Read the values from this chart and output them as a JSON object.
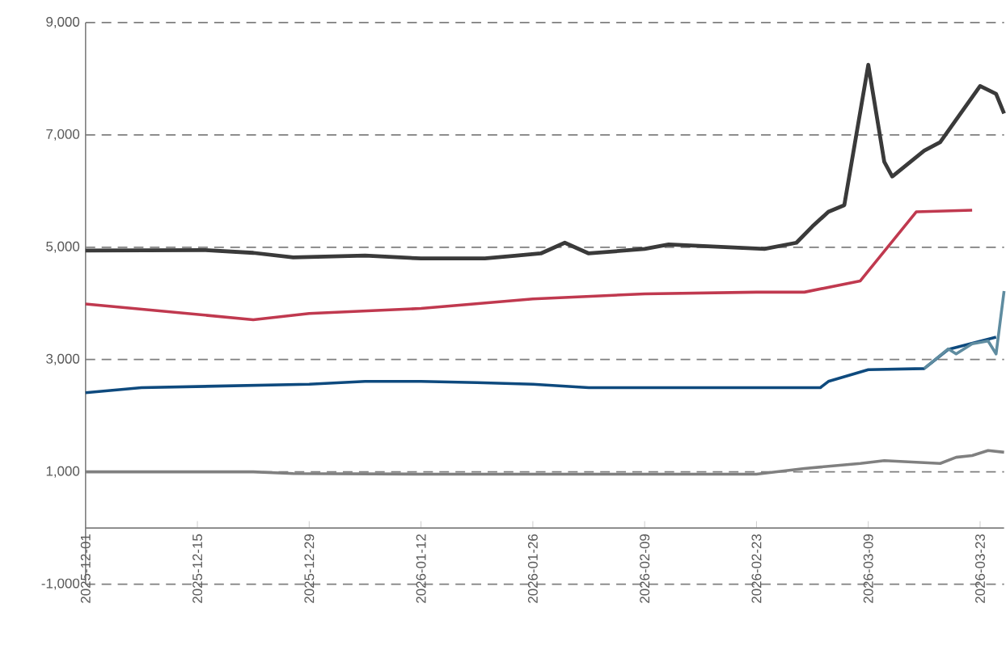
{
  "chart_data": {
    "type": "line",
    "xlim": [
      "2025-12-01",
      "2026-03-26"
    ],
    "xticks": [
      "2025-12-01",
      "2025-12-15",
      "2025-12-29",
      "2026-01-12",
      "2026-01-26",
      "2026-02-09",
      "2026-02-23",
      "2026-03-09",
      "2026-03-23"
    ],
    "ylim": [
      -1000,
      9000
    ],
    "yticks": [
      {
        "value": -1000,
        "label": "-1,000"
      },
      {
        "value": 1000,
        "label": "1,000"
      },
      {
        "value": 3000,
        "label": "3,000"
      },
      {
        "value": 5000,
        "label": "5,000"
      },
      {
        "value": 7000,
        "label": "7,000"
      },
      {
        "value": 9000,
        "label": "9,000"
      }
    ],
    "grid": "y",
    "marker": "none",
    "line_style": "solid",
    "series": [
      {
        "color": "#808080",
        "x": [
          "2025-12-01",
          "2025-12-22",
          "2025-12-27",
          "2026-01-12",
          "2026-02-23",
          "2026-03-01",
          "2026-03-08",
          "2026-03-11",
          "2026-03-18",
          "2026-03-20",
          "2026-03-22",
          "2026-03-24",
          "2026-03-26"
        ],
        "values": [
          1000,
          1000,
          970,
          960,
          960,
          1060,
          1150,
          1200,
          1150,
          1260,
          1290,
          1380,
          1350
        ]
      },
      {
        "color": "#0e4a7e",
        "x": [
          "2025-12-01",
          "2025-12-08",
          "2025-12-29",
          "2026-01-05",
          "2026-01-12",
          "2026-01-19",
          "2026-01-26",
          "2026-02-02",
          "2026-02-23",
          "2026-03-03",
          "2026-03-04",
          "2026-03-09",
          "2026-03-16",
          "2026-03-19",
          "2026-03-25"
        ],
        "values": [
          2410,
          2500,
          2560,
          2610,
          2610,
          2590,
          2560,
          2500,
          2500,
          2500,
          2610,
          2820,
          2840,
          3180,
          3400
        ]
      },
      {
        "color": "#c0394f",
        "x": [
          "2025-12-01",
          "2025-12-22",
          "2025-12-29",
          "2026-01-12",
          "2026-01-26",
          "2026-02-09",
          "2026-02-23",
          "2026-03-01",
          "2026-03-08",
          "2026-03-15",
          "2026-03-22"
        ],
        "values": [
          3990,
          3710,
          3820,
          3910,
          4080,
          4170,
          4200,
          4200,
          4400,
          5630,
          5660
        ]
      },
      {
        "color": "#5f8ca0",
        "x": [
          "2026-03-16",
          "2026-03-19",
          "2026-03-20",
          "2026-03-22",
          "2026-03-24",
          "2026-03-25",
          "2026-03-26"
        ],
        "values": [
          2840,
          3190,
          3100,
          3280,
          3330,
          3100,
          4220
        ]
      },
      {
        "color": "#3a3a3a",
        "x": [
          "2025-12-01",
          "2025-12-16",
          "2025-12-22",
          "2025-12-27",
          "2026-01-05",
          "2026-01-12",
          "2026-01-20",
          "2026-01-24",
          "2026-01-27",
          "2026-01-30",
          "2026-02-02",
          "2026-02-09",
          "2026-02-12",
          "2026-02-24",
          "2026-02-28",
          "2026-03-02",
          "2026-03-04",
          "2026-03-06",
          "2026-03-09",
          "2026-03-11",
          "2026-03-12",
          "2026-03-16",
          "2026-03-18",
          "2026-03-23",
          "2026-03-25",
          "2026-03-26"
        ],
        "values": [
          4940,
          4950,
          4900,
          4820,
          4850,
          4800,
          4800,
          4850,
          4890,
          5080,
          4890,
          4970,
          5050,
          4970,
          5080,
          5370,
          5630,
          5750,
          8250,
          6520,
          6260,
          6720,
          6870,
          7870,
          7730,
          7380
        ]
      }
    ]
  }
}
